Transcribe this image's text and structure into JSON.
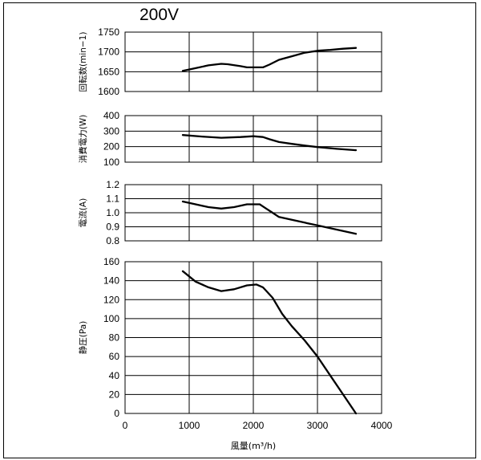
{
  "chart_data": {
    "type": "line",
    "title": "200V",
    "x": {
      "label": "風量(m³/h)",
      "ticks": [
        "0",
        "1000",
        "2000",
        "3000",
        "4000"
      ],
      "range": [
        0,
        4000
      ],
      "gridlines": [
        1000,
        2000,
        3000,
        4000
      ]
    },
    "panels": [
      {
        "ylabel": "回転数(min−1)",
        "ylim": [
          1600,
          1750
        ],
        "ticks": [
          "1600",
          "1650",
          "1700",
          "1750"
        ],
        "grid": true,
        "series": [
          {
            "x": [
              900,
              1100,
              1300,
              1500,
              1600,
              1800,
              1900,
              2150,
              2250,
              2400,
              2600,
              2800,
              3000,
              3200,
              3400,
              3600
            ],
            "y": [
              1652,
              1659,
              1666,
              1670,
              1669,
              1664,
              1661,
              1661,
              1668,
              1680,
              1689,
              1698,
              1703,
              1705,
              1708,
              1710
            ]
          }
        ]
      },
      {
        "ylabel": "消費電力(W)",
        "ylim": [
          100,
          400
        ],
        "ticks": [
          "100",
          "200",
          "300",
          "400"
        ],
        "grid": true,
        "series": [
          {
            "x": [
              900,
              1200,
              1500,
              1800,
              2000,
              2150,
              2250,
              2400,
              2600,
              2800,
              3000,
              3300,
              3600
            ],
            "y": [
              275,
              265,
              257,
              262,
              267,
              262,
              248,
              230,
              218,
              207,
              197,
              186,
              177
            ]
          }
        ]
      },
      {
        "ylabel": "電流(A)",
        "ylim": [
          0.8,
          1.2
        ],
        "ticks": [
          "0.8",
          "0.9",
          "1.0",
          "1.1",
          "1.2"
        ],
        "grid": true,
        "series": [
          {
            "x": [
              900,
              1100,
              1300,
              1500,
              1700,
              1900,
              2100,
              2200,
              2300,
              2400,
              2600,
              2800,
              3000,
              3200,
              3400,
              3600
            ],
            "y": [
              1.08,
              1.06,
              1.04,
              1.03,
              1.04,
              1.06,
              1.06,
              1.03,
              1.0,
              0.97,
              0.95,
              0.93,
              0.91,
              0.89,
              0.87,
              0.85
            ]
          }
        ]
      },
      {
        "ylabel": "静圧(Pa)",
        "ylim": [
          0,
          160
        ],
        "ticks": [
          "0",
          "20",
          "40",
          "60",
          "80",
          "100",
          "120",
          "140",
          "160"
        ],
        "grid": true,
        "series": [
          {
            "x": [
              900,
              1100,
              1300,
              1500,
              1700,
              1900,
              2050,
              2150,
              2300,
              2450,
              2600,
              2800,
              3000,
              3200,
              3400,
              3600
            ],
            "y": [
              150,
              139,
              133,
              129,
              131,
              135,
              136,
              133,
              122,
              105,
              92,
              77,
              60,
              40,
              20,
              0
            ]
          }
        ]
      }
    ]
  }
}
